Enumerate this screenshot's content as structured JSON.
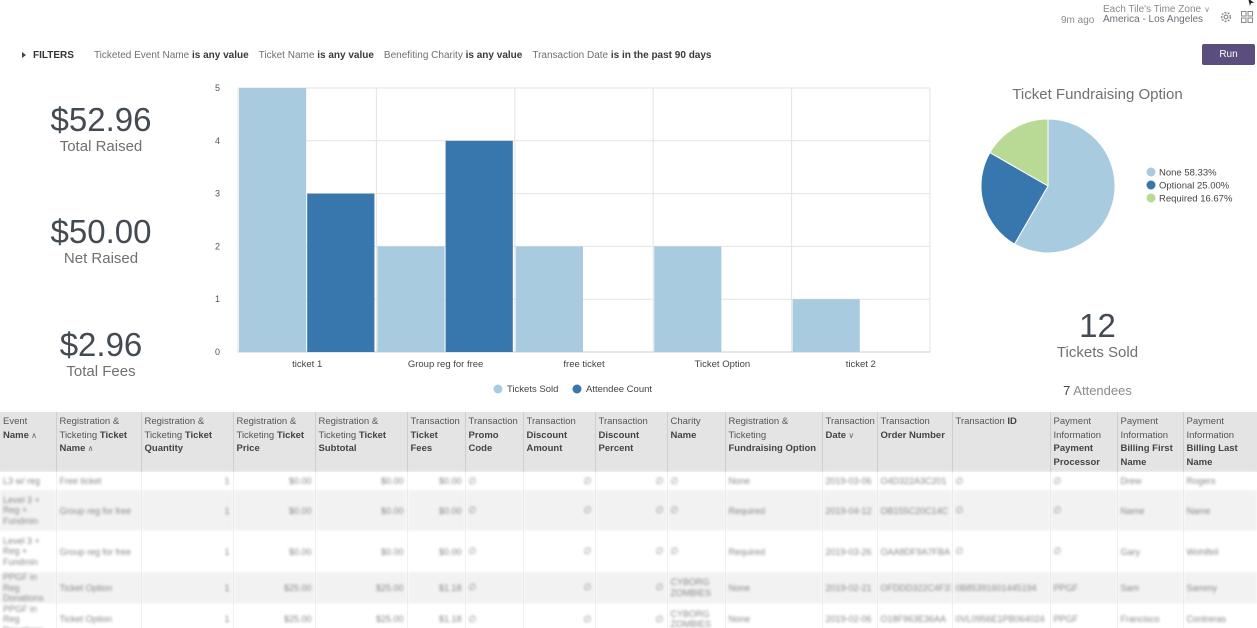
{
  "header": {
    "last_run": "9m ago",
    "timezone_label": "Each Tile's Time Zone",
    "timezone_value": "America - Los Angeles",
    "settings_icon": "gear-icon",
    "dashboard_icon": "grid-icon"
  },
  "filters": {
    "toggle_label": "FILTERS",
    "items": [
      {
        "field": "Ticketed Event Name",
        "condition": "is any value"
      },
      {
        "field": "Ticket Name",
        "condition": "is any value"
      },
      {
        "field": "Benefiting Charity",
        "condition": "is any value"
      },
      {
        "field": "Transaction Date",
        "condition": "is in the past 90 days"
      }
    ],
    "run_label": "Run"
  },
  "kpis": {
    "total_raised": {
      "value": "$52.96",
      "label": "Total Raised"
    },
    "net_raised": {
      "value": "$50.00",
      "label": "Net Raised"
    },
    "total_fees": {
      "value": "$2.96",
      "label": "Total Fees"
    },
    "tickets_sold": {
      "value": "12",
      "label": "Tickets Sold"
    },
    "attendees": {
      "count": "7",
      "label": "Attendees"
    }
  },
  "chart_data": [
    {
      "type": "bar",
      "categories": [
        "ticket 1",
        "Group reg for free",
        "free ticket",
        "Ticket Option",
        "ticket 2"
      ],
      "series": [
        {
          "name": "Tickets Sold",
          "values": [
            5,
            2,
            2,
            2,
            1
          ],
          "color": "#a9cbe0"
        },
        {
          "name": "Attendee Count",
          "values": [
            3,
            4,
            0,
            0,
            0
          ],
          "color": "#3876ae"
        }
      ],
      "ylim": [
        0,
        5
      ],
      "yticks": [
        "0",
        "1",
        "2",
        "3",
        "4",
        "5"
      ],
      "grid": true,
      "legend": "bottom"
    },
    {
      "type": "pie",
      "title": "Ticket Fundraising Option",
      "slices": [
        {
          "label": "None",
          "percent": "58.33%",
          "value": 58.33,
          "color": "#a9cbe0"
        },
        {
          "label": "Optional",
          "percent": "25.00%",
          "value": 25.0,
          "color": "#3876ae"
        },
        {
          "label": "Required",
          "percent": "16.67%",
          "value": 16.67,
          "color": "#b8da95"
        }
      ],
      "legend": "right"
    }
  ],
  "table": {
    "columns": [
      {
        "pre": "Event",
        "bold": "Name",
        "sort": "asc"
      },
      {
        "pre": "Registration & Ticketing",
        "bold": "Ticket Name",
        "sort": "asc"
      },
      {
        "pre": "Registration & Ticketing",
        "bold": "Ticket Quantity",
        "sort": ""
      },
      {
        "pre": "Registration & Ticketing",
        "bold": "Ticket Price",
        "sort": ""
      },
      {
        "pre": "Registration & Ticketing",
        "bold": "Ticket Subtotal",
        "sort": ""
      },
      {
        "pre": "Transaction",
        "bold": "Ticket Fees",
        "sort": ""
      },
      {
        "pre": "Transaction",
        "bold": "Promo Code",
        "sort": ""
      },
      {
        "pre": "Transaction",
        "bold": "Discount Amount",
        "sort": ""
      },
      {
        "pre": "Transaction",
        "bold": "Discount Percent",
        "sort": ""
      },
      {
        "pre": "Charity",
        "bold": "Name",
        "sort": ""
      },
      {
        "pre": "Registration & Ticketing",
        "bold": "Fundraising Option",
        "sort": ""
      },
      {
        "pre": "Transaction",
        "bold": "Date",
        "sort": "desc"
      },
      {
        "pre": "Transaction",
        "bold": "Order Number",
        "sort": ""
      },
      {
        "pre": "Transaction",
        "bold": "ID",
        "sort": ""
      },
      {
        "pre": "Payment Information",
        "bold": "Payment Processor",
        "sort": ""
      },
      {
        "pre": "Payment Information",
        "bold": "Billing First Name",
        "sort": ""
      },
      {
        "pre": "Payment Information",
        "bold": "Billing Last Name",
        "sort": ""
      }
    ],
    "rows": [
      [
        "L3 w/ reg",
        "Free ticket",
        "1",
        "$0.00",
        "$0.00",
        "$0.00",
        "∅",
        "∅",
        "∅",
        "∅",
        "None",
        "2019-03-06",
        "O4D322A3C201",
        "∅",
        "∅",
        "Drew",
        "Rogers"
      ],
      [
        "Level 3 + Reg + Fundmin",
        "Group reg for free",
        "1",
        "$0.00",
        "$0.00",
        "$0.00",
        "∅",
        "∅",
        "∅",
        "∅",
        "Required",
        "2019-04-12",
        "OB155C20C14C",
        "∅",
        "∅",
        "Name",
        "Name"
      ],
      [
        "Level 3 + Reg + Fundmin",
        "Group reg for free",
        "1",
        "$0.00",
        "$0.00",
        "$0.00",
        "∅",
        "∅",
        "∅",
        "∅",
        "Required",
        "2019-03-26",
        "OAA8DF9A7FBA",
        "∅",
        "∅",
        "Gary",
        "Wohlfeil"
      ],
      [
        "PPGF in Reg Donations",
        "Ticket Option",
        "1",
        "$25.00",
        "$25.00",
        "$1.18",
        "∅",
        "∅",
        "∅",
        "CYBORG ZOMBIES",
        "None",
        "2019-02-21",
        "OFDDD322C4F37",
        "0B85391601445194",
        "PPGF",
        "Sam",
        "Sammy"
      ],
      [
        "PPGF in Reg Donations",
        "Ticket Option",
        "1",
        "$25.00",
        "$25.00",
        "$1.18",
        "∅",
        "∅",
        "∅",
        "CYBORG ZOMBIES",
        "None",
        "2019-02-06",
        "O18F963E36AA",
        "0VL0956E1PB064024",
        "PPGF",
        "Francisco",
        "Contreras"
      ]
    ]
  }
}
